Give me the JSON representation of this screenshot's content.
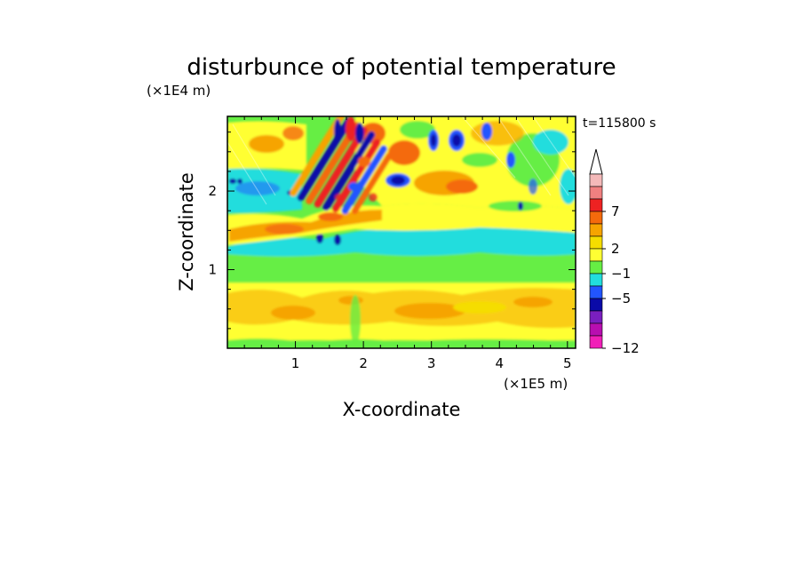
{
  "chart_data": {
    "type": "heatmap",
    "title": "disturbunce of potential temperature",
    "xlabel": "X-coordinate",
    "ylabel": "Z-coordinate",
    "x_unit": "(×1E5 m)",
    "y_unit": "(×1E4 m)",
    "time_label": "t=115800 s",
    "xlim": [
      0,
      5.12
    ],
    "ylim": [
      0,
      2.95
    ],
    "x_ticks": [
      {
        "value": 1,
        "label": "1"
      },
      {
        "value": 2,
        "label": "2"
      },
      {
        "value": 3,
        "label": "3"
      },
      {
        "value": 4,
        "label": "4"
      },
      {
        "value": 5,
        "label": "5"
      }
    ],
    "y_ticks": [
      {
        "value": 1,
        "label": "1"
      },
      {
        "value": 2,
        "label": "2"
      }
    ],
    "colorbar": {
      "labels": [
        {
          "value": 7,
          "label": "7"
        },
        {
          "value": 2,
          "label": "2"
        },
        {
          "value": -1,
          "label": "−1"
        },
        {
          "value": -5,
          "label": "−5"
        },
        {
          "value": -12,
          "label": "−12"
        }
      ],
      "colors_top_to_bottom": [
        "#f4b9b9",
        "#f08080",
        "#ee2222",
        "#f46a0c",
        "#f6a400",
        "#f5dd00",
        "#ffff33",
        "#66ee44",
        "#22dddd",
        "#2255ff",
        "#0a0aa8",
        "#7a1fbf",
        "#b80eb0",
        "#f01fb8"
      ]
    },
    "bands": [
      {
        "z_from": 0.0,
        "z_to": 0.12,
        "base": "green"
      },
      {
        "z_from": 0.12,
        "z_to": 0.85,
        "base": "yellow-orange"
      },
      {
        "z_from": 0.85,
        "z_to": 1.12,
        "base": "green"
      },
      {
        "z_from": 1.12,
        "z_to": 1.5,
        "base": "cyan"
      },
      {
        "z_from": 1.5,
        "z_to": 1.9,
        "base": "green-yellow"
      },
      {
        "z_from": 1.9,
        "z_to": 2.95,
        "base": "mixed"
      }
    ],
    "features": [
      {
        "x": 1.3,
        "z": 2.55,
        "value": -5
      },
      {
        "x": 1.45,
        "z": 2.3,
        "value": 7
      },
      {
        "x": 1.6,
        "z": 2.7,
        "value": 7
      },
      {
        "x": 1.8,
        "z": 2.8,
        "value": -5
      },
      {
        "x": 2.45,
        "z": 2.5,
        "value": 3
      },
      {
        "x": 2.5,
        "z": 2.1,
        "value": -5
      },
      {
        "x": 3.3,
        "z": 2.15,
        "value": 3
      },
      {
        "x": 3.4,
        "z": 2.6,
        "value": -5
      },
      {
        "x": 3.8,
        "z": 2.5,
        "value": -5
      },
      {
        "x": 1.7,
        "z": 1.8,
        "value": 3
      },
      {
        "x": 3.2,
        "z": 0.5,
        "value": 2
      }
    ]
  }
}
